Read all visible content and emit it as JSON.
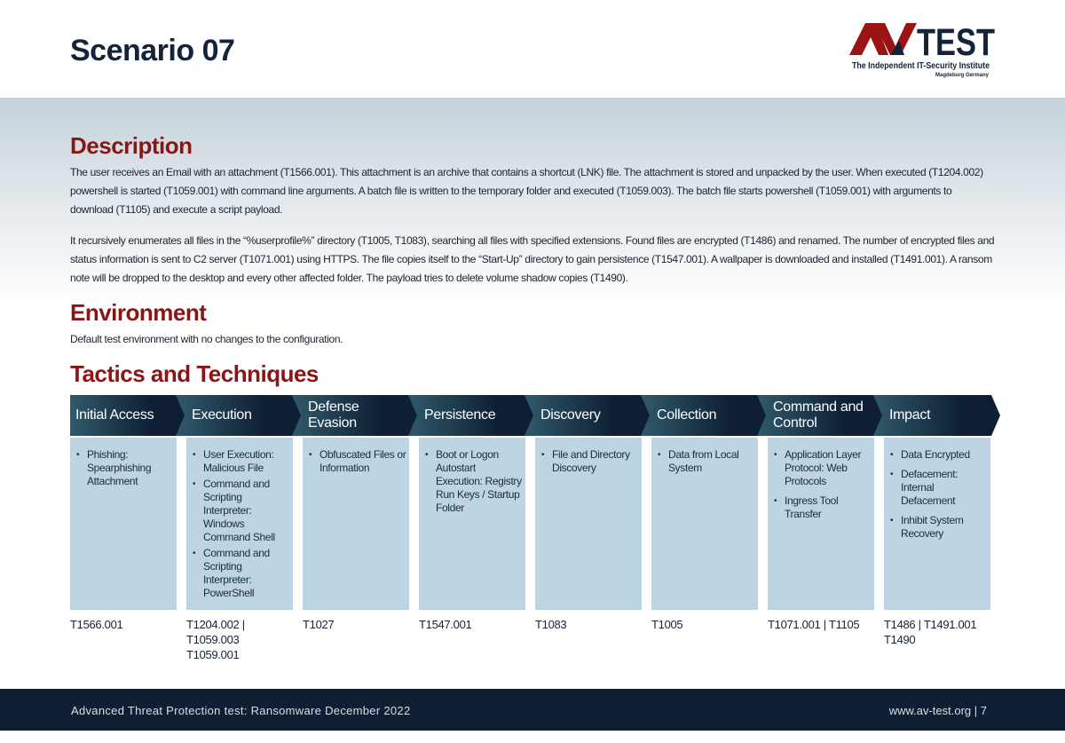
{
  "title": "Scenario 07",
  "logo": {
    "brand": "AV-TEST",
    "tagline": "The Independent IT-Security Institute",
    "location": "Magdeburg Germany",
    "colors": {
      "red": "#9b1414",
      "navy": "#12233a"
    }
  },
  "description": {
    "heading": "Description",
    "paragraphs": [
      "The user receives an Email with an attachment (T1566.001). This attachment is an archive that contains a shortcut (LNK) file. The attachment is stored and unpacked by the user. When executed (T1204.002) powershell is started (T1059.001) with command line arguments. A batch file is written to the temporary folder and executed (T1059.003). The batch file starts powershell (T1059.001) with arguments to download (T1105) and execute a script payload.",
      "It recursively enumerates all files in the “%userprofile%” directory (T1005, T1083), searching all files with specified extensions. Found files are encrypted (T1486) and renamed. The number of encrypted files and status information is sent to C2 server (T1071.001) using HTTPS. The file copies itself to the “Start-Up” directory to gain persistence (T1547.001). A wallpaper is downloaded and installed (T1491.001). A ransom note will be dropped to the desktop and every other affected folder. The payload tries to delete volume shadow copies (T1490)."
    ]
  },
  "environment": {
    "heading": "Environment",
    "text": "Default test environment with no changes to the configuration."
  },
  "tactics": {
    "heading": "Tactics and Techniques",
    "columns": [
      {
        "name": "Initial Access",
        "items": [
          "Phishing: Spearphishing Attachment"
        ],
        "ids": "T1566.001"
      },
      {
        "name": "Execution",
        "items": [
          "User Execution: Malicious File",
          "Command and Scripting Interpreter: Windows Command Shell",
          "Command and Scripting Interpreter: PowerShell"
        ],
        "ids": "T1204.002 | T1059.003 T1059.001"
      },
      {
        "name": "Defense Evasion",
        "items": [
          "Obfuscated Files or Information"
        ],
        "ids": "T1027"
      },
      {
        "name": "Persistence",
        "items": [
          "Boot or Logon Autostart Execution: Registry Run Keys / Startup Folder"
        ],
        "ids": "T1547.001"
      },
      {
        "name": "Discovery",
        "items": [
          "File and Directory Discovery"
        ],
        "ids": "T1083"
      },
      {
        "name": "Collection",
        "items": [
          "Data from Local System"
        ],
        "ids": "T1005"
      },
      {
        "name": "Command and Control",
        "items": [
          "Application Layer Protocol: Web Protocols",
          "Ingress Tool Transfer"
        ],
        "ids": "T1071.001 | T1105"
      },
      {
        "name": "Impact",
        "items": [
          "Data Encrypted",
          "Defacement: Internal Defacement",
          "Inhibit System Recovery"
        ],
        "ids": "T1486 | T1491.001 T1490"
      }
    ]
  },
  "footer": {
    "left": "Advanced Threat Protection test: Ransomware December 2022",
    "right": "www.av-test.org | 7"
  }
}
